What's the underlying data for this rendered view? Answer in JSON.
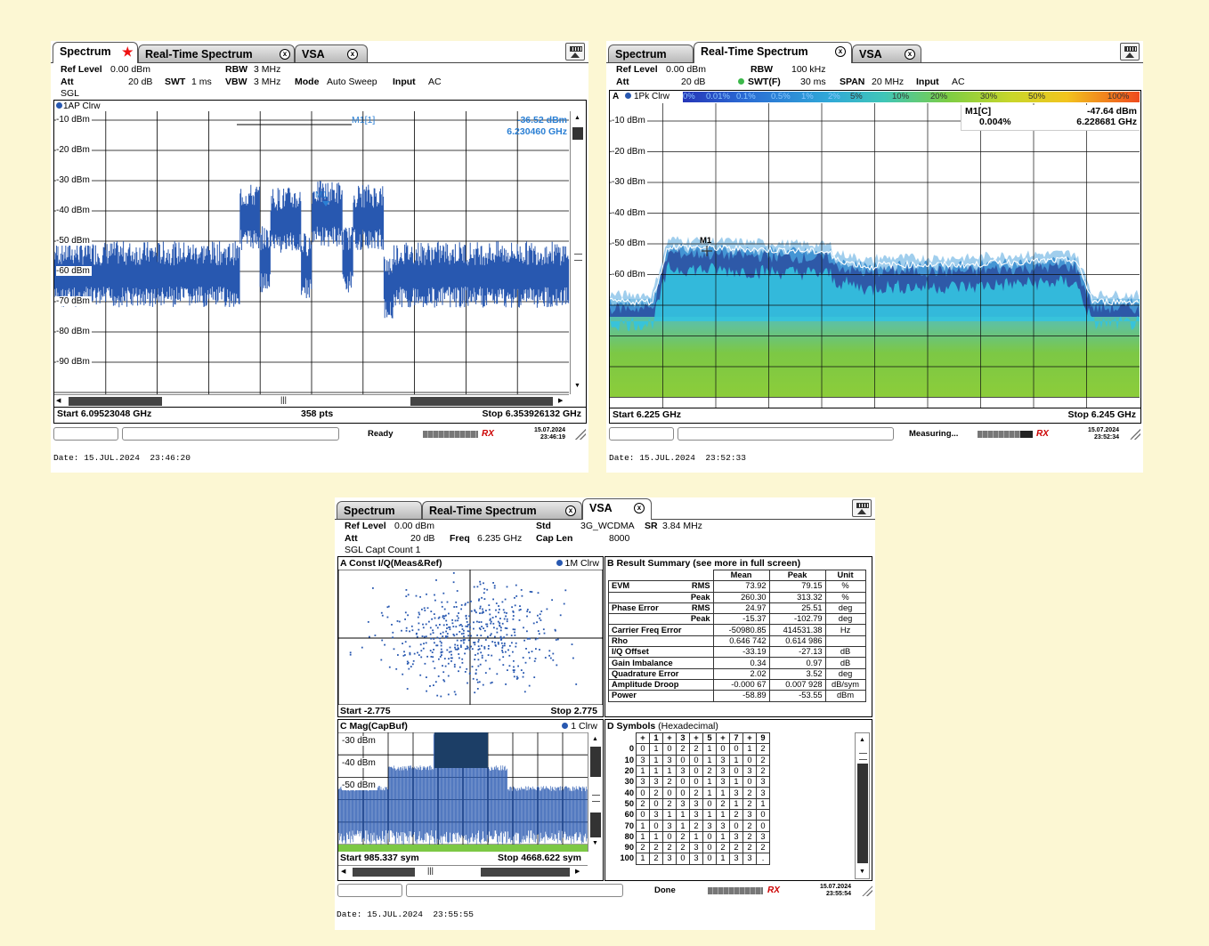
{
  "tabs": {
    "spectrum": "Spectrum",
    "realtime": "Real-Time Spectrum",
    "vsa": "VSA",
    "close": "x"
  },
  "s1": {
    "params": {
      "ref_label": "Ref Level",
      "ref_value": "0.00 dBm",
      "att_label": "Att",
      "att_value": "20 dB",
      "swt_label": "SWT",
      "swt_value": "1 ms",
      "rbw_label": "RBW",
      "rbw_value": "3 MHz",
      "vbw_label": "VBW",
      "vbw_value": "3 MHz",
      "mode_label": "Mode",
      "mode_value": "Auto Sweep",
      "input_label": "Input",
      "input_value": "AC",
      "sgl": "SGL"
    },
    "trace_label": "1AP Clrw",
    "marker_label": "M1[1]",
    "marker_level": "-36.52 dBm",
    "marker_freq": "6.230460 GHz",
    "marker_tag": "M1",
    "y_ticks": [
      "-10 dBm",
      "-20 dBm",
      "-30 dBm",
      "-40 dBm",
      "-50 dBm",
      "-60 dBm",
      "-70 dBm",
      "-80 dBm",
      "-90 dBm"
    ],
    "start": "Start 6.09523048 GHz",
    "pts": "358 pts",
    "stop": "Stop 6.353926132 GHz",
    "status": "Ready",
    "sys_date": "15.07.2024",
    "sys_time": "23:46:19",
    "footer": "Date: 15.JUL.2024  23:46:20",
    "scroll_mark": "|||"
  },
  "s2": {
    "params": {
      "ref_label": "Ref Level",
      "ref_value": "0.00 dBm",
      "att_label": "Att",
      "att_value": "20 dB",
      "rbw_label": "RBW",
      "rbw_value": "100 kHz",
      "swt_label": "SWT(F)",
      "swt_value": "30 ms",
      "span_label": "SPAN",
      "span_value": "20 MHz",
      "input_label": "Input",
      "input_value": "AC"
    },
    "window_label": "A",
    "trace_label": "1Pk Clrw",
    "persistence_labels": [
      "0%",
      "0.01%",
      "0.1%",
      "0.5%",
      "1%",
      "2%",
      "5%",
      "10%",
      "20%",
      "30%",
      "50%",
      "100%"
    ],
    "marker_label": "M1[C]",
    "marker_pct": "0.004%",
    "marker_level": "-47.64 dBm",
    "marker_freq": "6.228681 GHz",
    "marker_tag": "M1",
    "y_ticks": [
      "-10 dBm",
      "-20 dBm",
      "-30 dBm",
      "-40 dBm",
      "-50 dBm",
      "-60 dBm"
    ],
    "start": "Start 6.225 GHz",
    "stop": "Stop 6.245 GHz",
    "status": "Measuring...",
    "sys_date": "15.07.2024",
    "sys_time": "23:52:34",
    "footer": "Date: 15.JUL.2024  23:52:33"
  },
  "s3": {
    "params": {
      "ref_label": "Ref Level",
      "ref_value": "0.00 dBm",
      "att_label": "Att",
      "att_value": "20 dB",
      "freq_label": "Freq",
      "freq_value": "6.235 GHz",
      "std_label": "Std",
      "std_value": "3G_WCDMA",
      "sr_label": "SR",
      "sr_value": "3.84 MHz",
      "caplen_label": "Cap Len",
      "caplen_value": "8000",
      "sgl": "SGL Capt Count 1"
    },
    "const": {
      "title": "A Const I/Q(Meas&Ref)",
      "trace": "1M Clrw",
      "start": "Start -2.775",
      "stop": "Stop 2.775"
    },
    "mag": {
      "title": "C Mag(CapBuf)",
      "trace": "1 Clrw",
      "y_ticks": [
        "-30 dBm",
        "-40 dBm",
        "-50 dBm"
      ],
      "start": "Start 985.337 sym",
      "stop": "Stop 4668.622 sym"
    },
    "results": {
      "title_bold": "B Result Summary",
      "title_rest": " (see more in full screen)",
      "headers": [
        "",
        "",
        "Mean",
        "Peak",
        "Unit"
      ],
      "rows": [
        [
          "EVM",
          "RMS",
          "73.92",
          "79.15",
          "%"
        ],
        [
          "",
          "Peak",
          "260.30",
          "313.32",
          "%"
        ],
        [
          "Phase Error",
          "RMS",
          "24.97",
          "25.51",
          "deg"
        ],
        [
          "",
          "Peak",
          "-15.37",
          "-102.79",
          "deg"
        ],
        [
          "Carrier Freq Error",
          "",
          "-50980.85",
          "414531.38",
          "Hz"
        ],
        [
          "Rho",
          "",
          "0.646 742",
          "0.614 986",
          ""
        ],
        [
          "I/Q Offset",
          "",
          "-33.19",
          "-27.13",
          "dB"
        ],
        [
          "Gain Imbalance",
          "",
          "0.34",
          "0.97",
          "dB"
        ],
        [
          "Quadrature Error",
          "",
          "2.02",
          "3.52",
          "deg"
        ],
        [
          "Amplitude Droop",
          "",
          "-0.000 67",
          "0.007 928",
          "dB/sym"
        ],
        [
          "Power",
          "",
          "-58.89",
          "-53.55",
          "dBm"
        ]
      ]
    },
    "symbols": {
      "title_bold": "D Symbols",
      "title_rest": " (Hexadecimal)",
      "header": [
        "+",
        "1",
        "+",
        "3",
        "+",
        "5",
        "+",
        "7",
        "+",
        "9"
      ],
      "row_labels": [
        "0",
        "10",
        "20",
        "30",
        "40",
        "50",
        "60",
        "70",
        "80",
        "90",
        "100"
      ],
      "rows": [
        [
          "0",
          "1",
          "0",
          "2",
          "2",
          "1",
          "0",
          "0",
          "1",
          "2"
        ],
        [
          "3",
          "1",
          "3",
          "0",
          "0",
          "1",
          "3",
          "1",
          "0",
          "2"
        ],
        [
          "1",
          "1",
          "1",
          "3",
          "0",
          "2",
          "3",
          "0",
          "3",
          "2"
        ],
        [
          "3",
          "3",
          "2",
          "0",
          "0",
          "1",
          "3",
          "1",
          "0",
          "3"
        ],
        [
          "0",
          "2",
          "0",
          "0",
          "2",
          "1",
          "1",
          "3",
          "2",
          "3"
        ],
        [
          "2",
          "0",
          "2",
          "3",
          "3",
          "0",
          "2",
          "1",
          "2",
          "1"
        ],
        [
          "0",
          "3",
          "1",
          "1",
          "3",
          "1",
          "1",
          "2",
          "3",
          "0"
        ],
        [
          "1",
          "0",
          "3",
          "1",
          "2",
          "3",
          "3",
          "0",
          "2",
          "0"
        ],
        [
          "1",
          "1",
          "0",
          "2",
          "1",
          "0",
          "1",
          "3",
          "2",
          "3"
        ],
        [
          "2",
          "2",
          "2",
          "2",
          "3",
          "0",
          "2",
          "2",
          "2",
          "2"
        ],
        [
          "1",
          "2",
          "3",
          "0",
          "3",
          "0",
          "1",
          "3",
          "3",
          "."
        ]
      ]
    },
    "status": "Done",
    "sys_date": "15.07.2024",
    "sys_time": "23:55:54",
    "footer": "Date: 15.JUL.2024  23:55:55"
  },
  "logo_text": "RX",
  "colors": {
    "trace": "#2858b0",
    "marker": "#2a7fd4",
    "background": "#fcf7d3"
  }
}
